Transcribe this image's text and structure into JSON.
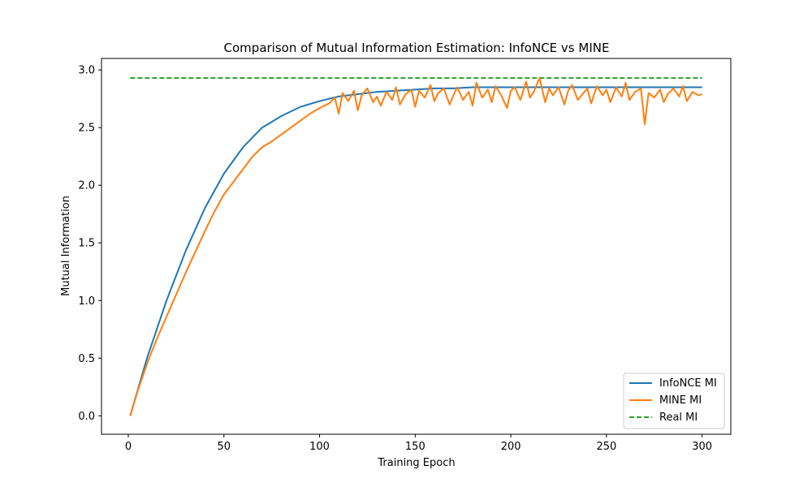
{
  "chart_data": {
    "type": "line",
    "title": "Comparison of Mutual Information Estimation: InfoNCE vs MINE",
    "xlabel": "Training Epoch",
    "ylabel": "Mutual Information",
    "xlim": [
      -14,
      315
    ],
    "ylim": [
      -0.16,
      3.1
    ],
    "x_ticks": [
      0,
      50,
      100,
      150,
      200,
      250,
      300
    ],
    "y_ticks": [
      0.0,
      0.5,
      1.0,
      1.5,
      2.0,
      2.5,
      3.0
    ],
    "x_tick_labels": [
      "0",
      "50",
      "100",
      "150",
      "200",
      "250",
      "300"
    ],
    "y_tick_labels": [
      "0.0",
      "0.5",
      "1.0",
      "1.5",
      "2.0",
      "2.5",
      "3.0"
    ],
    "grid": false,
    "legend_position": "lower-right",
    "series": [
      {
        "name": "InfoNCE MI",
        "color": "#1f77b4",
        "style": "solid",
        "x": [
          1,
          10,
          20,
          30,
          40,
          50,
          60,
          70,
          80,
          90,
          100,
          110,
          120,
          130,
          140,
          150,
          160,
          170,
          180,
          190,
          200,
          210,
          220,
          230,
          240,
          250,
          260,
          270,
          280,
          290,
          300
        ],
        "y": [
          0.0,
          0.51,
          1.0,
          1.43,
          1.8,
          2.1,
          2.33,
          2.5,
          2.6,
          2.68,
          2.73,
          2.77,
          2.79,
          2.81,
          2.82,
          2.83,
          2.84,
          2.84,
          2.85,
          2.85,
          2.85,
          2.85,
          2.85,
          2.85,
          2.85,
          2.85,
          2.85,
          2.85,
          2.85,
          2.85,
          2.85
        ]
      },
      {
        "name": "MINE MI",
        "color": "#ff7f0e",
        "style": "solid",
        "x": [
          1,
          5,
          10,
          15,
          20,
          25,
          30,
          35,
          40,
          45,
          50,
          55,
          60,
          65,
          70,
          75,
          80,
          85,
          90,
          95,
          100,
          105,
          108,
          110,
          112,
          115,
          118,
          120,
          122,
          125,
          128,
          130,
          132,
          135,
          138,
          140,
          142,
          145,
          148,
          150,
          152,
          155,
          158,
          160,
          162,
          165,
          168,
          170,
          172,
          175,
          178,
          180,
          182,
          185,
          188,
          190,
          192,
          195,
          198,
          200,
          202,
          205,
          208,
          210,
          212,
          215,
          218,
          220,
          222,
          225,
          228,
          230,
          232,
          235,
          238,
          240,
          242,
          245,
          248,
          250,
          252,
          255,
          258,
          260,
          262,
          265,
          268,
          270,
          272,
          275,
          278,
          280,
          282,
          285,
          288,
          290,
          292,
          295,
          298,
          300
        ],
        "y": [
          0.0,
          0.22,
          0.46,
          0.67,
          0.86,
          1.05,
          1.24,
          1.42,
          1.6,
          1.77,
          1.92,
          2.03,
          2.14,
          2.25,
          2.33,
          2.38,
          2.44,
          2.5,
          2.56,
          2.62,
          2.67,
          2.71,
          2.76,
          2.62,
          2.8,
          2.73,
          2.82,
          2.65,
          2.78,
          2.84,
          2.72,
          2.77,
          2.69,
          2.81,
          2.74,
          2.85,
          2.7,
          2.79,
          2.83,
          2.68,
          2.82,
          2.76,
          2.87,
          2.73,
          2.8,
          2.84,
          2.7,
          2.78,
          2.85,
          2.74,
          2.81,
          2.69,
          2.89,
          2.76,
          2.83,
          2.72,
          2.86,
          2.78,
          2.67,
          2.82,
          2.85,
          2.74,
          2.9,
          2.76,
          2.81,
          2.93,
          2.72,
          2.84,
          2.78,
          2.85,
          2.7,
          2.82,
          2.87,
          2.74,
          2.8,
          2.84,
          2.71,
          2.86,
          2.78,
          2.83,
          2.72,
          2.85,
          2.77,
          2.89,
          2.74,
          2.81,
          2.84,
          2.53,
          2.8,
          2.76,
          2.83,
          2.72,
          2.79,
          2.84,
          2.77,
          2.86,
          2.73,
          2.81,
          2.78,
          2.79
        ]
      },
      {
        "name": "Real MI",
        "color": "#2ca02c",
        "style": "dashed",
        "x": [
          1,
          300
        ],
        "y": [
          2.93,
          2.93
        ]
      }
    ]
  }
}
